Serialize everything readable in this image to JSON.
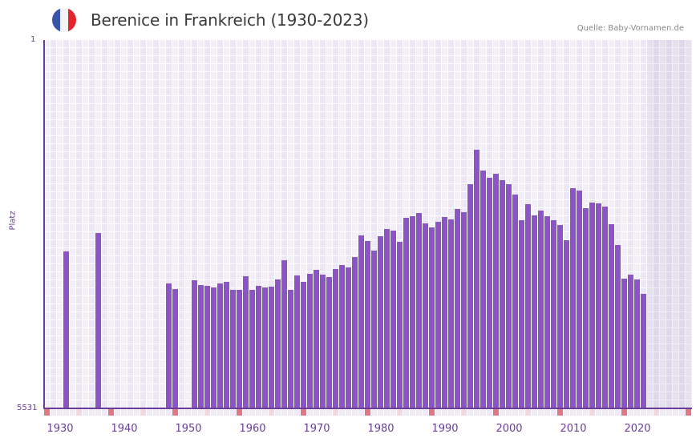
{
  "header": {
    "title": "Berenice in Frankreich (1930-2023)",
    "source": "Quelle: Baby-Vornamen.de",
    "flag_colors": [
      "#3b56a8",
      "#f4f4f4",
      "#e3262e"
    ]
  },
  "colors": {
    "bar": "#8c54c6",
    "axis": "#6a3d9a",
    "grid_bg_a": "#f3effb",
    "grid_bg_b": "#ece6f7",
    "grid_line": "#ffffff",
    "marker_decade": "#e37680",
    "marker_half": "#f5d7de",
    "marker_other": "#efe9f8"
  },
  "chart_data": {
    "type": "bar",
    "title": "Berenice in Frankreich (1930-2023)",
    "xlabel": "",
    "ylabel": "Platz",
    "y_axis_inverted": true,
    "ylim": [
      5531,
      1
    ],
    "y_tick_labels": [
      "1",
      "5531"
    ],
    "x_range": [
      1928,
      2028
    ],
    "x_tick_labels": [
      "1930",
      "1940",
      "1950",
      "1960",
      "1970",
      "1980",
      "1990",
      "2000",
      "2010",
      "2020"
    ],
    "grid": true,
    "shaded_future_from": 2022,
    "points": [
      {
        "year": 1931,
        "rank": 3175
      },
      {
        "year": 1936,
        "rank": 2898
      },
      {
        "year": 1947,
        "rank": 3655
      },
      {
        "year": 1948,
        "rank": 3739
      },
      {
        "year": 1951,
        "rank": 3607
      },
      {
        "year": 1952,
        "rank": 3679
      },
      {
        "year": 1953,
        "rank": 3691
      },
      {
        "year": 1954,
        "rank": 3715
      },
      {
        "year": 1955,
        "rank": 3655
      },
      {
        "year": 1956,
        "rank": 3631
      },
      {
        "year": 1957,
        "rank": 3751
      },
      {
        "year": 1958,
        "rank": 3751
      },
      {
        "year": 1959,
        "rank": 3547
      },
      {
        "year": 1960,
        "rank": 3751
      },
      {
        "year": 1961,
        "rank": 3691
      },
      {
        "year": 1962,
        "rank": 3715
      },
      {
        "year": 1963,
        "rank": 3703
      },
      {
        "year": 1964,
        "rank": 3595
      },
      {
        "year": 1965,
        "rank": 3307
      },
      {
        "year": 1966,
        "rank": 3751
      },
      {
        "year": 1967,
        "rank": 3535
      },
      {
        "year": 1968,
        "rank": 3631
      },
      {
        "year": 1969,
        "rank": 3511
      },
      {
        "year": 1970,
        "rank": 3451
      },
      {
        "year": 1971,
        "rank": 3523
      },
      {
        "year": 1972,
        "rank": 3559
      },
      {
        "year": 1973,
        "rank": 3439
      },
      {
        "year": 1974,
        "rank": 3379
      },
      {
        "year": 1975,
        "rank": 3415
      },
      {
        "year": 1976,
        "rank": 3259
      },
      {
        "year": 1977,
        "rank": 2934
      },
      {
        "year": 1978,
        "rank": 3018
      },
      {
        "year": 1979,
        "rank": 3163
      },
      {
        "year": 1980,
        "rank": 2946
      },
      {
        "year": 1981,
        "rank": 2838
      },
      {
        "year": 1982,
        "rank": 2862
      },
      {
        "year": 1983,
        "rank": 3030
      },
      {
        "year": 1984,
        "rank": 2670
      },
      {
        "year": 1985,
        "rank": 2646
      },
      {
        "year": 1986,
        "rank": 2598
      },
      {
        "year": 1987,
        "rank": 2754
      },
      {
        "year": 1988,
        "rank": 2814
      },
      {
        "year": 1989,
        "rank": 2730
      },
      {
        "year": 1990,
        "rank": 2658
      },
      {
        "year": 1991,
        "rank": 2694
      },
      {
        "year": 1992,
        "rank": 2537
      },
      {
        "year": 1993,
        "rank": 2585
      },
      {
        "year": 1994,
        "rank": 2165
      },
      {
        "year": 1995,
        "rank": 1648
      },
      {
        "year": 1996,
        "rank": 1961
      },
      {
        "year": 1997,
        "rank": 2069
      },
      {
        "year": 1998,
        "rank": 2009
      },
      {
        "year": 1999,
        "rank": 2105
      },
      {
        "year": 2000,
        "rank": 2165
      },
      {
        "year": 2001,
        "rank": 2321
      },
      {
        "year": 2002,
        "rank": 2706
      },
      {
        "year": 2003,
        "rank": 2465
      },
      {
        "year": 2004,
        "rank": 2634
      },
      {
        "year": 2005,
        "rank": 2562
      },
      {
        "year": 2006,
        "rank": 2646
      },
      {
        "year": 2007,
        "rank": 2706
      },
      {
        "year": 2008,
        "rank": 2778
      },
      {
        "year": 2009,
        "rank": 3006
      },
      {
        "year": 2010,
        "rank": 2225
      },
      {
        "year": 2011,
        "rank": 2261
      },
      {
        "year": 2012,
        "rank": 2525
      },
      {
        "year": 2013,
        "rank": 2441
      },
      {
        "year": 2014,
        "rank": 2453
      },
      {
        "year": 2015,
        "rank": 2501
      },
      {
        "year": 2016,
        "rank": 2766
      },
      {
        "year": 2017,
        "rank": 3078
      },
      {
        "year": 2018,
        "rank": 3583
      },
      {
        "year": 2019,
        "rank": 3523
      },
      {
        "year": 2020,
        "rank": 3595
      },
      {
        "year": 2021,
        "rank": 3811
      }
    ]
  }
}
